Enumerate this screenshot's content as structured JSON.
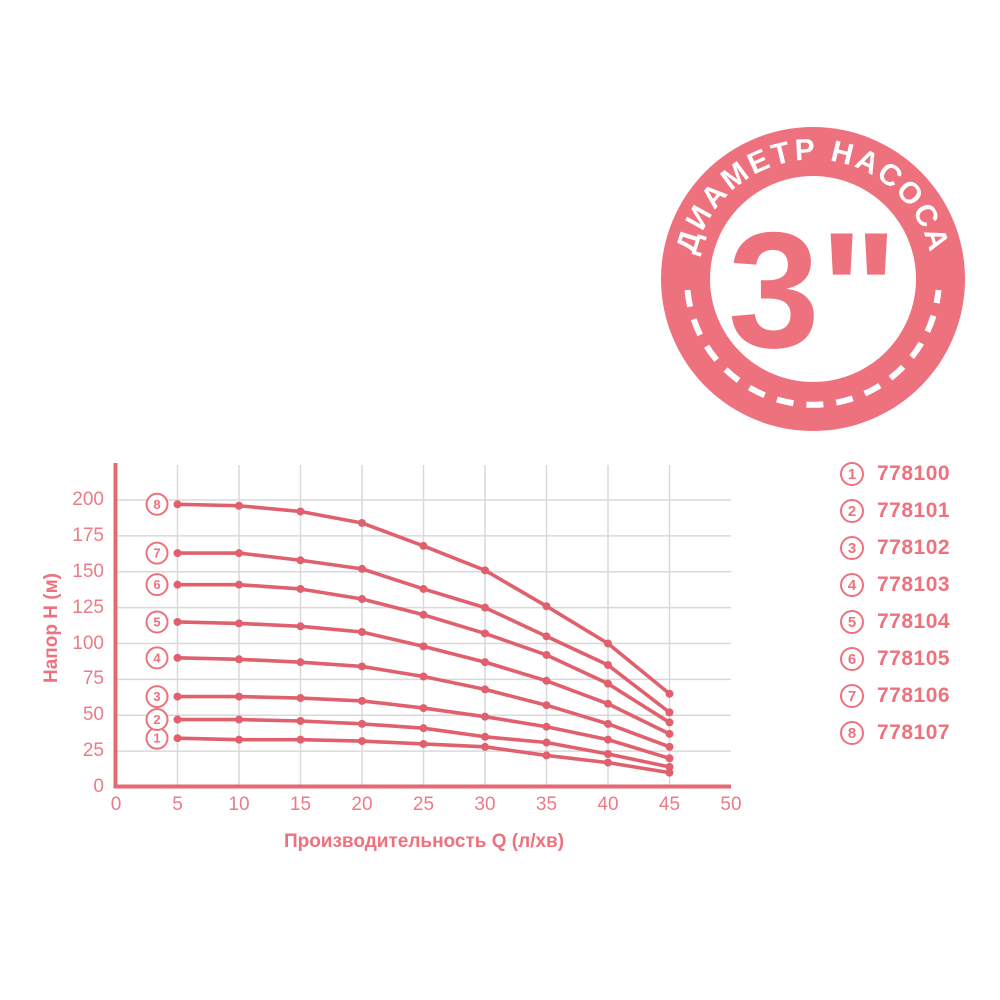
{
  "badge": {
    "ring_text": "ДИАМЕТР НАСОСА",
    "diameter_text": "3\""
  },
  "chart_data": {
    "type": "line",
    "title": "",
    "xlabel": "Производительность Q (л/хв)",
    "ylabel": "Напор H (м)",
    "xlim": [
      0,
      50
    ],
    "ylim": [
      0,
      224
    ],
    "x_ticks": [
      0,
      5,
      10,
      15,
      20,
      25,
      30,
      35,
      40,
      45,
      50
    ],
    "y_ticks": [
      0,
      25,
      50,
      75,
      100,
      125,
      150,
      175,
      200
    ],
    "grid": true,
    "legend_position": "right",
    "x": [
      5,
      10,
      15,
      20,
      25,
      30,
      35,
      40,
      45
    ],
    "series": [
      {
        "label": "1",
        "code": "778100",
        "values": [
          34,
          33,
          33,
          32,
          30,
          28,
          22,
          17,
          10
        ]
      },
      {
        "label": "2",
        "code": "778101",
        "values": [
          47,
          47,
          46,
          44,
          41,
          35,
          31,
          23,
          14
        ]
      },
      {
        "label": "3",
        "code": "778102",
        "values": [
          63,
          63,
          62,
          60,
          55,
          49,
          42,
          33,
          20
        ]
      },
      {
        "label": "4",
        "code": "778103",
        "values": [
          90,
          89,
          87,
          84,
          77,
          68,
          57,
          44,
          28
        ]
      },
      {
        "label": "5",
        "code": "778104",
        "values": [
          115,
          114,
          112,
          108,
          98,
          87,
          74,
          58,
          37
        ]
      },
      {
        "label": "6",
        "code": "778105",
        "values": [
          141,
          141,
          138,
          131,
          120,
          107,
          92,
          72,
          45
        ]
      },
      {
        "label": "7",
        "code": "778106",
        "values": [
          163,
          163,
          158,
          152,
          138,
          125,
          105,
          85,
          52
        ]
      },
      {
        "label": "8",
        "code": "778107",
        "values": [
          197,
          196,
          192,
          184,
          168,
          151,
          126,
          100,
          65
        ]
      }
    ]
  },
  "colors": {
    "accent": "#ee717e",
    "curve": "#e0616d",
    "axis": "#e56873",
    "grid": "#d9d9d9",
    "tick": "#ec7b86",
    "white": "#ffffff"
  }
}
